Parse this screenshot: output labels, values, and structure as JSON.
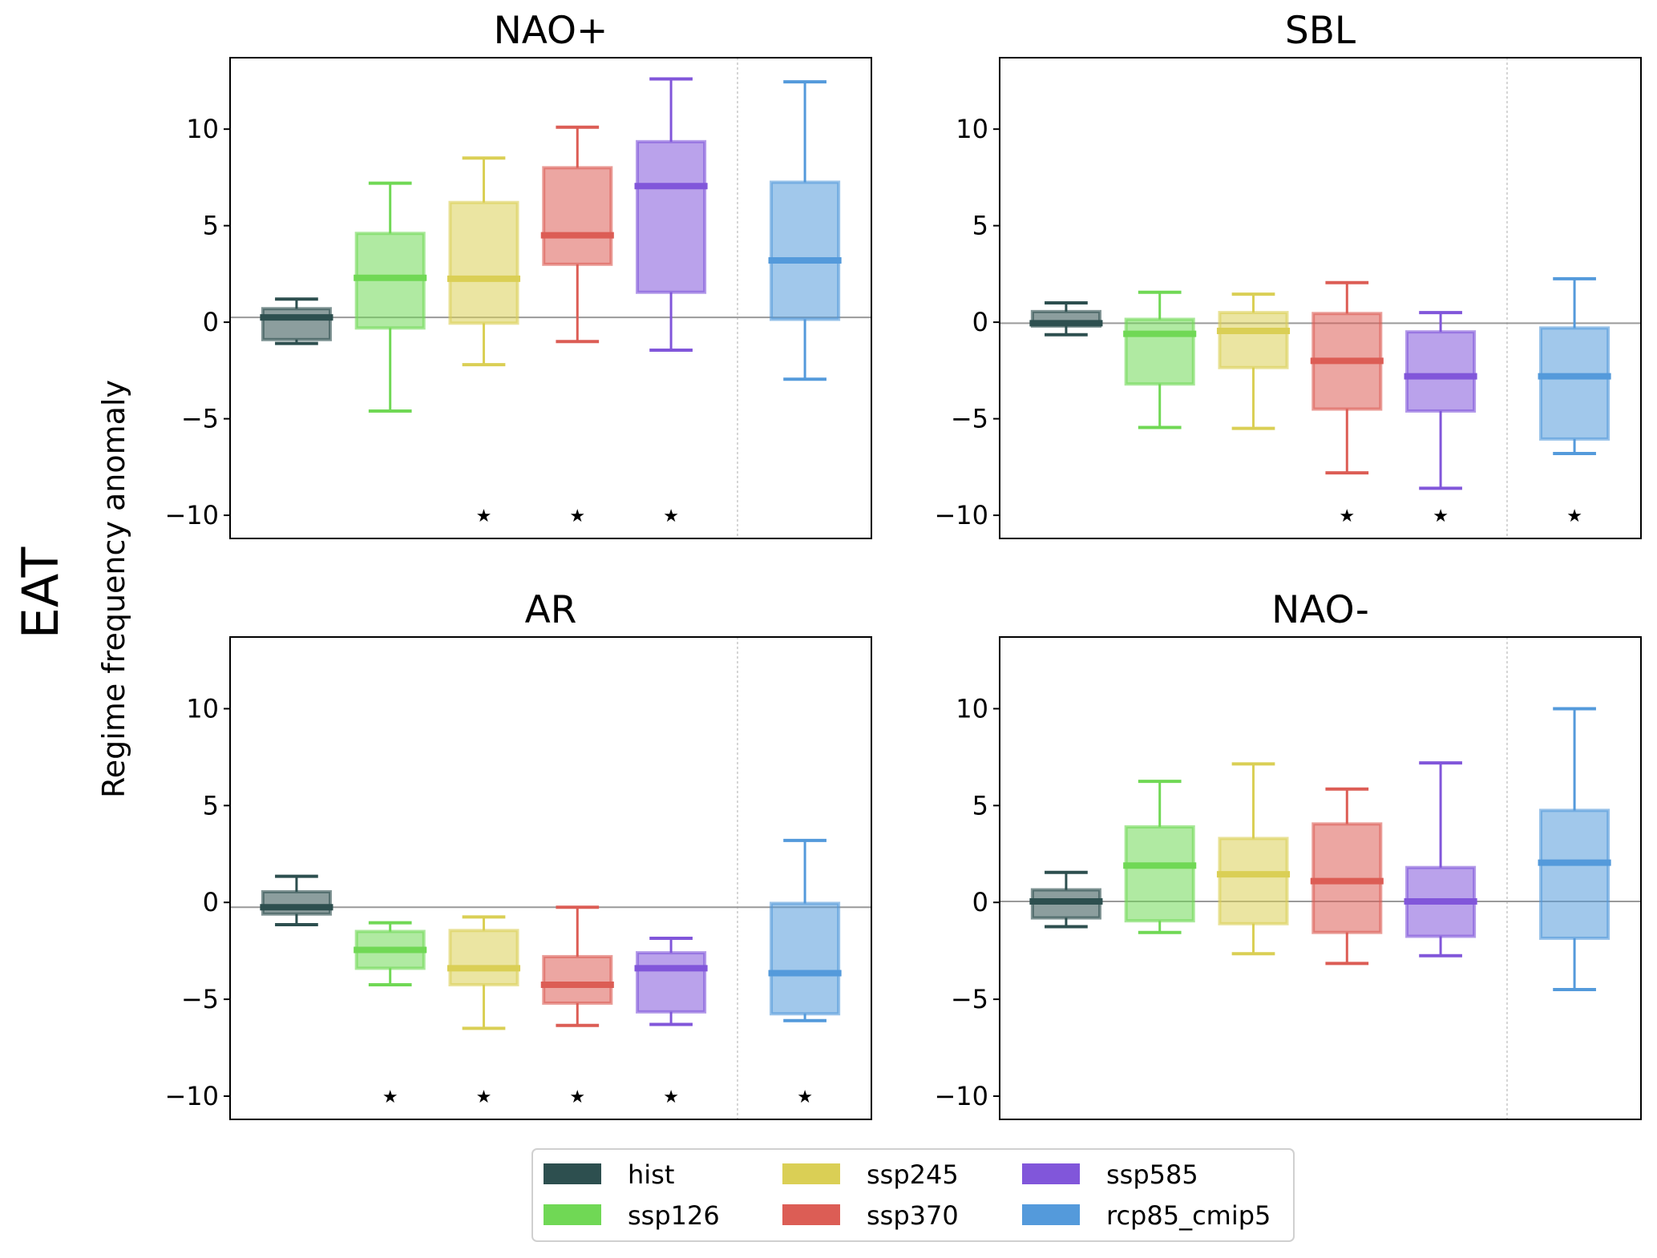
{
  "chart_data": {
    "type": "box",
    "row_label": "EAT",
    "ylabel": "Regime frequency anomaly",
    "ylim": [
      -11.2,
      13.7
    ],
    "yticks": [
      -10,
      -5,
      0,
      5,
      10
    ],
    "ytick_labels": [
      "−10",
      "−5",
      "0",
      "5",
      "10"
    ],
    "xlim": [
      -0.71,
      6.14
    ],
    "x_positions": [
      0,
      1,
      2,
      3,
      4,
      5.43
    ],
    "separator_x": 4.71,
    "significance_marker_y": -10,
    "series": [
      {
        "name": "hist",
        "color": "#2d4f4f"
      },
      {
        "name": "ssp126",
        "color": "#70d855"
      },
      {
        "name": "ssp245",
        "color": "#dacf55"
      },
      {
        "name": "ssp370",
        "color": "#dc5d55"
      },
      {
        "name": "ssp585",
        "color": "#8156da"
      },
      {
        "name": "rcp85_cmip5",
        "color": "#549adb"
      }
    ],
    "panels": [
      {
        "title": "NAO+",
        "reference_line": 0.25,
        "boxes": [
          {
            "whislo": -1.1,
            "q1": -0.9,
            "med": 0.25,
            "q3": 0.7,
            "whishi": 1.2,
            "significant": false
          },
          {
            "whislo": -4.6,
            "q1": -0.3,
            "med": 2.3,
            "q3": 4.6,
            "whishi": 7.2,
            "significant": false
          },
          {
            "whislo": -2.2,
            "q1": -0.05,
            "med": 2.25,
            "q3": 6.2,
            "whishi": 8.5,
            "significant": true
          },
          {
            "whislo": -1.0,
            "q1": 3.0,
            "med": 4.5,
            "q3": 8.0,
            "whishi": 10.1,
            "significant": true
          },
          {
            "whislo": -1.45,
            "q1": 1.55,
            "med": 7.05,
            "q3": 9.35,
            "whishi": 12.6,
            "significant": true
          },
          {
            "whislo": -2.95,
            "q1": 0.15,
            "med": 3.2,
            "q3": 7.25,
            "whishi": 12.45,
            "significant": false
          }
        ]
      },
      {
        "title": "SBL",
        "reference_line": -0.05,
        "boxes": [
          {
            "whislo": -0.65,
            "q1": -0.2,
            "med": -0.05,
            "q3": 0.55,
            "whishi": 1.0,
            "significant": false
          },
          {
            "whislo": -5.45,
            "q1": -3.2,
            "med": -0.6,
            "q3": 0.15,
            "whishi": 1.55,
            "significant": false
          },
          {
            "whislo": -5.5,
            "q1": -2.35,
            "med": -0.45,
            "q3": 0.5,
            "whishi": 1.45,
            "significant": false
          },
          {
            "whislo": -7.8,
            "q1": -4.5,
            "med": -2.0,
            "q3": 0.45,
            "whishi": 2.05,
            "significant": true
          },
          {
            "whislo": -8.6,
            "q1": -4.6,
            "med": -2.8,
            "q3": -0.5,
            "whishi": 0.5,
            "significant": true
          },
          {
            "whislo": -6.8,
            "q1": -6.05,
            "med": -2.8,
            "q3": -0.3,
            "whishi": 2.25,
            "significant": true
          }
        ]
      },
      {
        "title": "AR",
        "reference_line": -0.25,
        "boxes": [
          {
            "whislo": -1.15,
            "q1": -0.6,
            "med": -0.25,
            "q3": 0.55,
            "whishi": 1.35,
            "significant": false
          },
          {
            "whislo": -4.25,
            "q1": -3.4,
            "med": -2.45,
            "q3": -1.5,
            "whishi": -1.05,
            "significant": true
          },
          {
            "whislo": -6.5,
            "q1": -4.25,
            "med": -3.4,
            "q3": -1.45,
            "whishi": -0.75,
            "significant": true
          },
          {
            "whislo": -6.35,
            "q1": -5.2,
            "med": -4.25,
            "q3": -2.8,
            "whishi": -0.25,
            "significant": true
          },
          {
            "whislo": -6.3,
            "q1": -5.65,
            "med": -3.4,
            "q3": -2.6,
            "whishi": -1.85,
            "significant": true
          },
          {
            "whislo": -6.1,
            "q1": -5.75,
            "med": -3.65,
            "q3": -0.05,
            "whishi": 3.2,
            "significant": true
          }
        ]
      },
      {
        "title": "NAO-",
        "reference_line": 0.05,
        "boxes": [
          {
            "whislo": -1.25,
            "q1": -0.8,
            "med": 0.05,
            "q3": 0.65,
            "whishi": 1.55,
            "significant": false
          },
          {
            "whislo": -1.55,
            "q1": -0.95,
            "med": 1.9,
            "q3": 3.9,
            "whishi": 6.25,
            "significant": false
          },
          {
            "whislo": -2.65,
            "q1": -1.1,
            "med": 1.45,
            "q3": 3.3,
            "whishi": 7.15,
            "significant": false
          },
          {
            "whislo": -3.15,
            "q1": -1.55,
            "med": 1.1,
            "q3": 4.05,
            "whishi": 5.85,
            "significant": false
          },
          {
            "whislo": -2.75,
            "q1": -1.75,
            "med": 0.05,
            "q3": 1.8,
            "whishi": 7.2,
            "significant": false
          },
          {
            "whislo": -4.5,
            "q1": -1.85,
            "med": 2.05,
            "q3": 4.75,
            "whishi": 10.0,
            "significant": false
          }
        ]
      }
    ],
    "legend": {
      "placement": "bottom-center",
      "columns": 3,
      "entries": [
        "hist",
        "ssp126",
        "ssp245",
        "ssp370",
        "ssp585",
        "rcp85_cmip5"
      ]
    },
    "significance_symbol": "★"
  }
}
